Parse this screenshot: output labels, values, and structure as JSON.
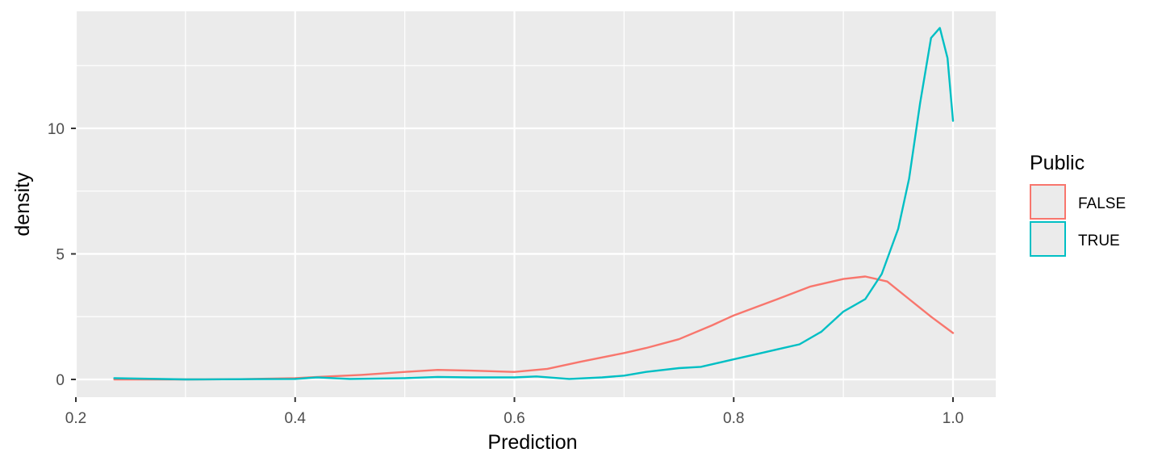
{
  "chart_data": {
    "type": "line",
    "title": "",
    "xlabel": "Prediction",
    "ylabel": "density",
    "xlim": [
      0.2,
      1.0
    ],
    "ylim": [
      0,
      14
    ],
    "x_ticks": [
      0.2,
      0.4,
      0.6,
      0.8,
      1.0
    ],
    "x_tick_labels": [
      "0.2",
      "0.4",
      "0.6",
      "0.8",
      "1.0"
    ],
    "y_ticks": [
      0,
      5,
      10
    ],
    "y_tick_labels": [
      "0",
      "5",
      "10"
    ],
    "grid": true,
    "legend_position": "right",
    "legend_title": "Public",
    "series": [
      {
        "name": "FALSE",
        "color": "#F8766D",
        "x": [
          0.235,
          0.3,
          0.35,
          0.4,
          0.43,
          0.46,
          0.5,
          0.53,
          0.56,
          0.6,
          0.63,
          0.66,
          0.7,
          0.72,
          0.75,
          0.78,
          0.8,
          0.84,
          0.87,
          0.9,
          0.92,
          0.94,
          0.96,
          0.98,
          1.0
        ],
        "y": [
          0.0,
          0.0,
          0.01,
          0.05,
          0.12,
          0.18,
          0.3,
          0.38,
          0.35,
          0.3,
          0.42,
          0.7,
          1.05,
          1.25,
          1.6,
          2.15,
          2.55,
          3.2,
          3.7,
          4.0,
          4.1,
          3.9,
          3.2,
          2.5,
          1.85
        ]
      },
      {
        "name": "TRUE",
        "color": "#00BFC4",
        "x": [
          0.235,
          0.3,
          0.35,
          0.4,
          0.42,
          0.45,
          0.5,
          0.53,
          0.56,
          0.6,
          0.62,
          0.65,
          0.68,
          0.7,
          0.72,
          0.75,
          0.77,
          0.8,
          0.82,
          0.84,
          0.86,
          0.88,
          0.9,
          0.92,
          0.935,
          0.95,
          0.96,
          0.97,
          0.98,
          0.988,
          0.995,
          1.0
        ],
        "y": [
          0.05,
          0.0,
          0.01,
          0.02,
          0.08,
          0.02,
          0.05,
          0.1,
          0.08,
          0.08,
          0.12,
          0.02,
          0.08,
          0.15,
          0.3,
          0.45,
          0.5,
          0.8,
          1.0,
          1.2,
          1.4,
          1.9,
          2.7,
          3.2,
          4.2,
          6.0,
          8.0,
          11.0,
          13.6,
          14.0,
          12.8,
          10.3
        ]
      }
    ]
  }
}
